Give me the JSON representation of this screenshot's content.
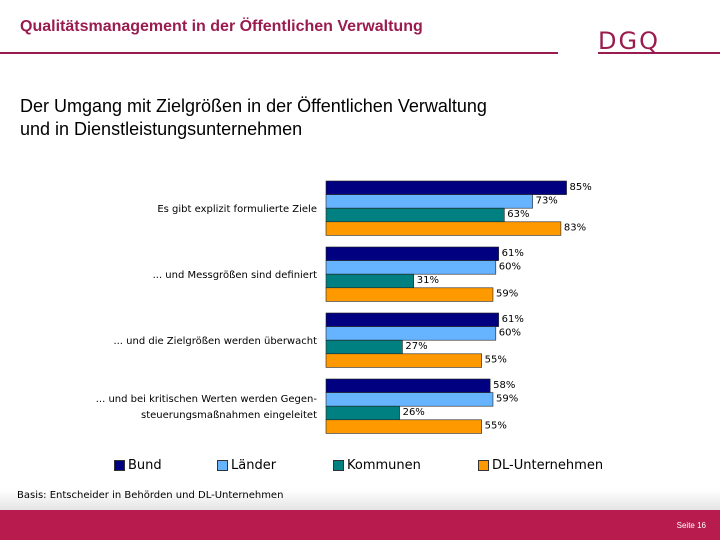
{
  "header": {
    "title": "Qualitätsmanagement in der Öffentlichen Verwaltung",
    "logo": "DGQ"
  },
  "slide": {
    "title_line1": "Der Umgang mit Zielgrößen in der Öffentlichen Verwaltung",
    "title_line2": "und in Dienstleistungsunternehmen"
  },
  "chart_data": {
    "type": "bar",
    "orientation": "horizontal",
    "categories": [
      "Es gibt explizit formulierte Ziele",
      "... und Messgrößen sind definiert",
      "... und die Zielgrößen werden überwacht",
      "... und bei kritischen Werten werden Gegen- steuerungsmaßnahmen eingeleitet"
    ],
    "category_lines": [
      [
        "Es gibt explizit formulierte Ziele"
      ],
      [
        "... und Messgrößen sind definiert"
      ],
      [
        "... und die Zielgrößen werden überwacht"
      ],
      [
        "... und bei kritischen Werten werden Gegen-",
        "steuerungsmaßnahmen eingeleitet"
      ]
    ],
    "series": [
      {
        "name": "Bund",
        "color": "#000080",
        "values": [
          85,
          61,
          61,
          58
        ]
      },
      {
        "name": "Länder",
        "color": "#66b3ff",
        "values": [
          73,
          60,
          60,
          59
        ]
      },
      {
        "name": "Kommunen",
        "color": "#008080",
        "values": [
          63,
          31,
          27,
          26
        ]
      },
      {
        "name": "DL-Unternehmen",
        "color": "#ff9900",
        "values": [
          83,
          59,
          55,
          55
        ]
      }
    ],
    "unit": "%",
    "xlim": [
      0,
      100
    ],
    "legend": "bottom",
    "grid": false
  },
  "basis": "Basis: Entscheider in Behörden und DL-Unternehmen",
  "footer": {
    "page": "Seite 16"
  }
}
